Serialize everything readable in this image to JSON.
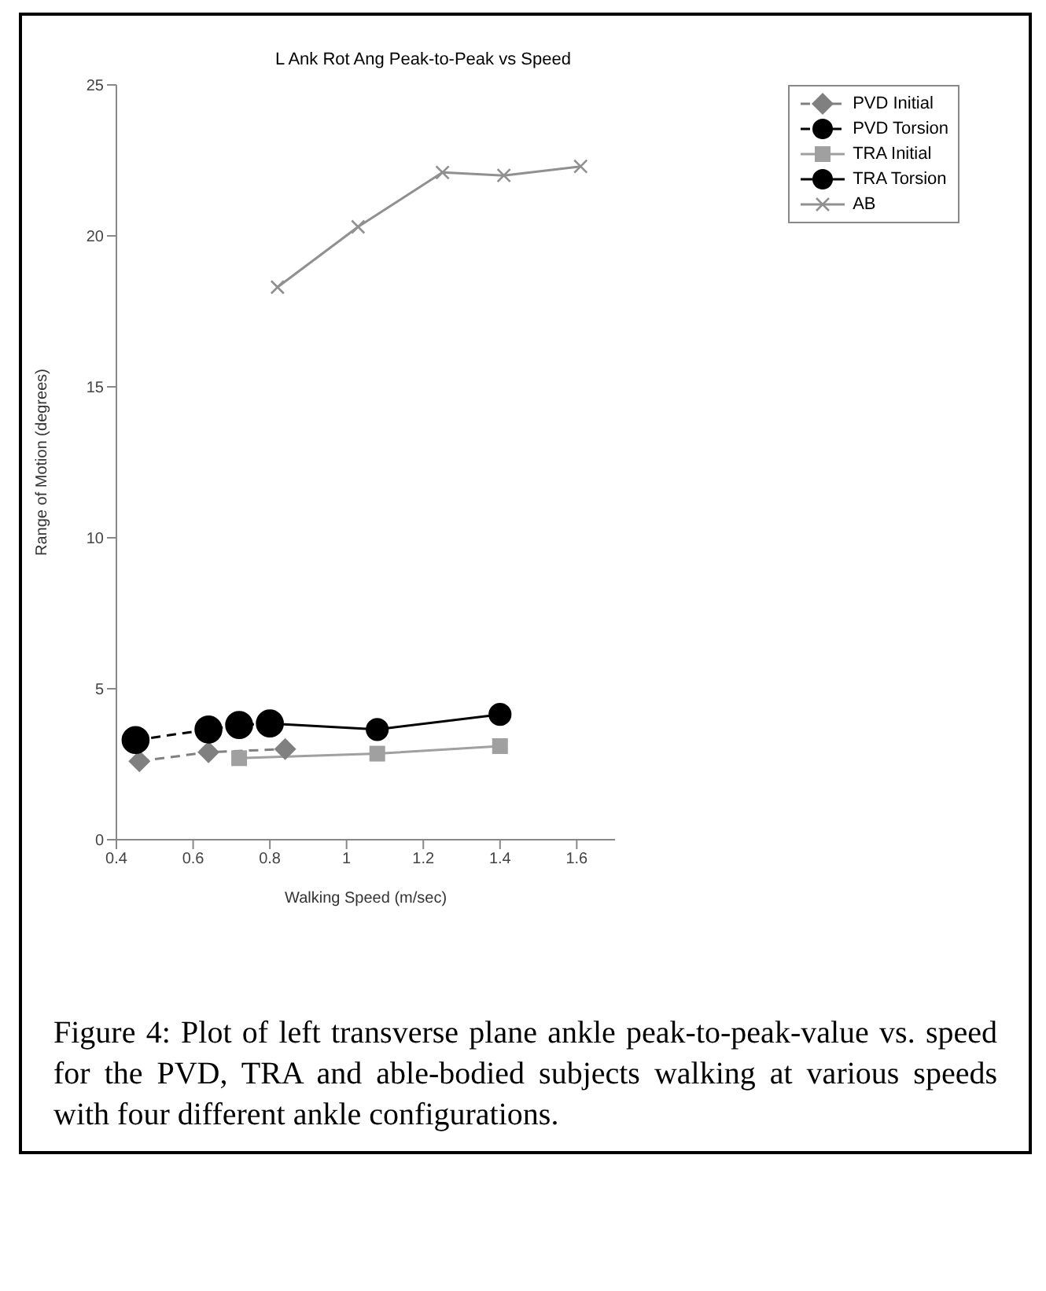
{
  "chart_data": {
    "type": "line",
    "title": "L Ank Rot Ang Peak-to-Peak vs Speed",
    "xlabel": "Walking Speed (m/sec)",
    "ylabel": "Range of Motion (degrees)",
    "xlim": [
      0.4,
      1.7
    ],
    "xticks": [
      0.4,
      0.6,
      0.8,
      1,
      1.2,
      1.4,
      1.6
    ],
    "ylim": [
      0,
      25
    ],
    "yticks": [
      0,
      5,
      10,
      15,
      20,
      25
    ],
    "grid": false,
    "legend": "top right",
    "series": [
      {
        "name": "PVD Initial",
        "color": "#808080",
        "marker": "diamond",
        "line_style": "dashed",
        "x": [
          0.46,
          0.64,
          0.84
        ],
        "values": [
          2.6,
          2.9,
          3.0
        ]
      },
      {
        "name": "PVD Torsion",
        "color": "#000000",
        "marker": "circle",
        "line_style": "dashed",
        "x": [
          0.45,
          0.64,
          0.72,
          0.8
        ],
        "values": [
          3.3,
          3.65,
          3.8,
          3.85
        ]
      },
      {
        "name": "TRA Initial",
        "color": "#a0a0a0",
        "marker": "square",
        "line_style": "solid",
        "x": [
          0.72,
          1.08,
          1.4
        ],
        "values": [
          2.7,
          2.85,
          3.1
        ]
      },
      {
        "name": "TRA Torsion",
        "color": "#000000",
        "marker": "circle",
        "line_style": "solid",
        "x": [
          0.8,
          1.08,
          1.4
        ],
        "values": [
          3.85,
          3.65,
          4.15
        ]
      },
      {
        "name": "AB",
        "color": "#909090",
        "marker": "cross",
        "line_style": "solid",
        "x": [
          0.82,
          1.03,
          1.25,
          1.41,
          1.61
        ],
        "values": [
          18.3,
          20.3,
          22.1,
          22.0,
          22.3
        ]
      }
    ],
    "annotations": [
      "Figure 4: Plot of left transverse plane ankle peak-to-peak-value vs. speed for the PVD, TRA and able-bodied subjects walking at various speeds with four different ankle configurations."
    ]
  }
}
